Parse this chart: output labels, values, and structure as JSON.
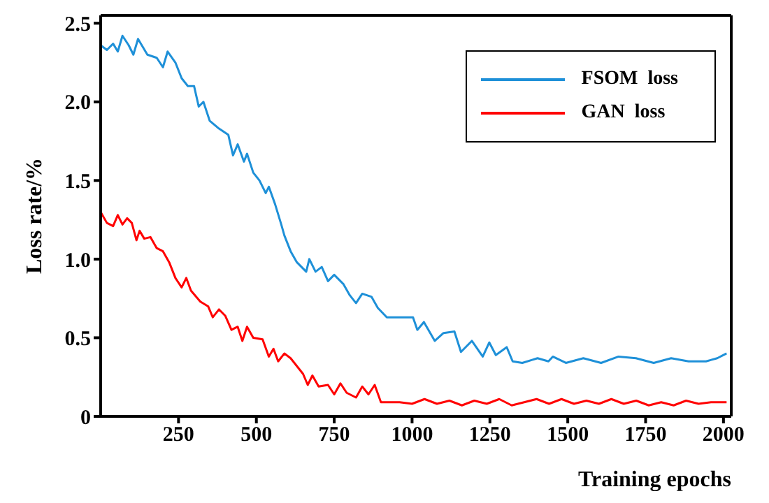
{
  "chart_data": {
    "type": "line",
    "xlabel": "Training epochs",
    "ylabel": "Loss rate/%",
    "xlim": [
      0,
      2025
    ],
    "ylim": [
      0,
      2.55
    ],
    "xticks": [
      250,
      500,
      750,
      1000,
      1250,
      1500,
      1750,
      2000
    ],
    "yticks": [
      {
        "value": 0,
        "label": "0"
      },
      0.5,
      {
        "value": 1,
        "label": "1.0"
      },
      1.5,
      {
        "value": 2,
        "label": "2.0"
      },
      2.5
    ],
    "legend": "top right",
    "marker": "none",
    "line_style": "solid",
    "series": [
      {
        "name": "FSOM  loss",
        "color": "#1e90d8",
        "x": [
          0,
          20,
          40,
          55,
          70,
          90,
          105,
          120,
          150,
          180,
          200,
          215,
          240,
          260,
          280,
          300,
          315,
          330,
          350,
          380,
          410,
          425,
          440,
          460,
          470,
          490,
          510,
          530,
          540,
          560,
          580,
          590,
          610,
          630,
          660,
          670,
          690,
          710,
          730,
          750,
          780,
          800,
          820,
          840,
          870,
          890,
          919,
          961,
          1003,
          1017,
          1038,
          1073,
          1101,
          1136,
          1157,
          1192,
          1227,
          1248,
          1269,
          1304,
          1323,
          1354,
          1403,
          1438,
          1452,
          1494,
          1550,
          1607,
          1663,
          1719,
          1776,
          1832,
          1888,
          1944,
          1980,
          2010
        ],
        "values": [
          2.36,
          2.33,
          2.37,
          2.32,
          2.42,
          2.36,
          2.3,
          2.4,
          2.3,
          2.28,
          2.22,
          2.32,
          2.25,
          2.15,
          2.1,
          2.1,
          1.97,
          2.0,
          1.88,
          1.83,
          1.79,
          1.66,
          1.73,
          1.62,
          1.67,
          1.55,
          1.5,
          1.42,
          1.46,
          1.35,
          1.22,
          1.15,
          1.05,
          0.98,
          0.92,
          1.0,
          0.92,
          0.95,
          0.86,
          0.9,
          0.84,
          0.77,
          0.72,
          0.78,
          0.76,
          0.69,
          0.63,
          0.63,
          0.63,
          0.55,
          0.6,
          0.48,
          0.53,
          0.54,
          0.41,
          0.48,
          0.38,
          0.47,
          0.39,
          0.44,
          0.35,
          0.34,
          0.37,
          0.35,
          0.38,
          0.34,
          0.37,
          0.34,
          0.38,
          0.37,
          0.34,
          0.37,
          0.35,
          0.35,
          0.37,
          0.4
        ]
      },
      {
        "name": "GAN  loss",
        "color": "#ff0000",
        "x": [
          0,
          20,
          40,
          55,
          70,
          85,
          100,
          115,
          125,
          140,
          160,
          180,
          200,
          220,
          240,
          260,
          275,
          290,
          320,
          345,
          360,
          380,
          400,
          420,
          440,
          455,
          470,
          490,
          520,
          540,
          555,
          570,
          590,
          610,
          630,
          650,
          665,
          680,
          700,
          730,
          750,
          770,
          790,
          820,
          840,
          860,
          880,
          900,
          930,
          960,
          1000,
          1040,
          1080,
          1120,
          1160,
          1200,
          1240,
          1280,
          1320,
          1360,
          1400,
          1440,
          1480,
          1520,
          1560,
          1600,
          1640,
          1680,
          1720,
          1760,
          1800,
          1840,
          1880,
          1920,
          1960,
          2010
        ],
        "values": [
          1.3,
          1.23,
          1.21,
          1.28,
          1.22,
          1.26,
          1.23,
          1.12,
          1.18,
          1.13,
          1.14,
          1.07,
          1.05,
          0.98,
          0.88,
          0.82,
          0.88,
          0.8,
          0.73,
          0.7,
          0.63,
          0.68,
          0.64,
          0.55,
          0.57,
          0.48,
          0.57,
          0.5,
          0.49,
          0.38,
          0.43,
          0.35,
          0.4,
          0.37,
          0.32,
          0.27,
          0.2,
          0.26,
          0.19,
          0.2,
          0.14,
          0.21,
          0.15,
          0.12,
          0.19,
          0.14,
          0.2,
          0.09,
          0.09,
          0.09,
          0.08,
          0.11,
          0.08,
          0.1,
          0.07,
          0.1,
          0.08,
          0.11,
          0.07,
          0.09,
          0.11,
          0.08,
          0.11,
          0.08,
          0.1,
          0.08,
          0.11,
          0.08,
          0.1,
          0.07,
          0.09,
          0.07,
          0.1,
          0.08,
          0.09,
          0.09
        ]
      }
    ]
  }
}
